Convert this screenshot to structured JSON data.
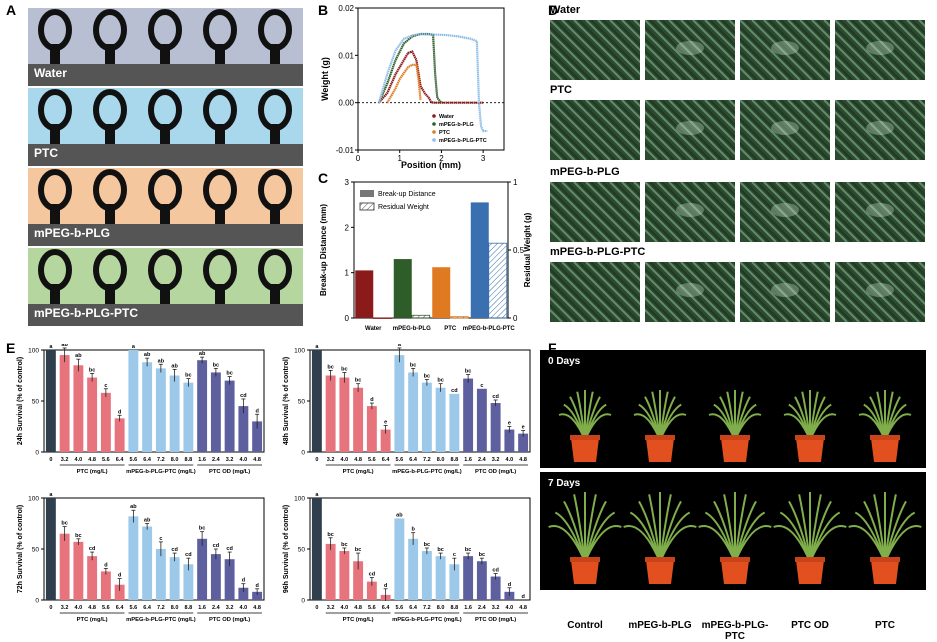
{
  "panels": {
    "a": "A",
    "b": "B",
    "c": "C",
    "d": "D",
    "e": "E",
    "f": "F"
  },
  "drop_panels": [
    {
      "label": "Water",
      "color": "#b9bfd2"
    },
    {
      "label": "PTC",
      "color": "#a9d7ec"
    },
    {
      "label": "mPEG-b-PLG",
      "color": "#f4c79e"
    },
    {
      "label": "mPEG-b-PLG-PTC",
      "color": "#b6d6a0"
    }
  ],
  "micro_rows": [
    {
      "label": "Water"
    },
    {
      "label": "PTC"
    },
    {
      "label": "mPEG-b-PLG"
    },
    {
      "label": "mPEG-b-PLG-PTC"
    }
  ],
  "photo_days": [
    "0 Days",
    "7 Days"
  ],
  "plant_labels": [
    "Control",
    "mPEG-b-PLG",
    "mPEG-b-PLG-PTC",
    "PTC OD",
    "PTC"
  ],
  "colors": {
    "water": "#2f3f4e",
    "ptc": "#e7737c",
    "plg_ptc": "#9cc8ea",
    "ptcod": "#5e5f9e",
    "b_water": "#8b1a1a",
    "b_plg": "#2f5d2a",
    "b_ptc": "#e07a20",
    "b_plgptc": "#8fbde6"
  },
  "chart_data": [
    {
      "id": "B",
      "type": "line",
      "xlabel": "Position (mm)",
      "ylabel": "Weight (g)",
      "xlim": [
        0,
        3.5
      ],
      "ylim": [
        -0.01,
        0.02
      ],
      "xticks": [
        0,
        1,
        2,
        3
      ],
      "yticks": [
        -0.01,
        0.0,
        0.01,
        0.02
      ],
      "ytick_labels": [
        "-0.01",
        "0.00",
        "0.01",
        "0.02"
      ],
      "legend": "upper-right",
      "series": [
        {
          "name": "Water",
          "color": "#8b1a1a",
          "x": [
            0.5,
            0.7,
            0.9,
            1.1,
            1.2,
            1.3,
            1.4,
            1.5,
            1.6,
            1.7,
            1.75,
            1.8,
            2.0,
            2.5,
            3.0
          ],
          "y": [
            0,
            0.002,
            0.006,
            0.009,
            0.0105,
            0.0108,
            0.009,
            0.0035,
            0.002,
            0.001,
            0.0002,
            0,
            0,
            0,
            0
          ]
        },
        {
          "name": "mPEG-b-PLG",
          "color": "#2f5d2a",
          "x": [
            0.5,
            0.7,
            0.9,
            1.1,
            1.3,
            1.5,
            1.7,
            1.8,
            1.85,
            1.9,
            2.0
          ],
          "y": [
            0,
            0.004,
            0.009,
            0.0125,
            0.014,
            0.0145,
            0.0145,
            0.0143,
            0.006,
            0.001,
            0
          ]
        },
        {
          "name": "PTC",
          "color": "#e07a20",
          "x": [
            0.7,
            0.9,
            1.0,
            1.2,
            1.3,
            1.4,
            1.45,
            1.5
          ],
          "y": [
            0,
            0.003,
            0.005,
            0.0075,
            0.008,
            0.008,
            0.005,
            0.0005
          ]
        },
        {
          "name": "mPEG-b-PLG-PTC",
          "color": "#8fbde6",
          "x": [
            0.5,
            0.7,
            0.9,
            1.1,
            1.3,
            1.5,
            1.8,
            2.1,
            2.4,
            2.7,
            2.85,
            2.9,
            2.95,
            3.0,
            3.1
          ],
          "y": [
            0,
            0.006,
            0.011,
            0.0135,
            0.0142,
            0.0145,
            0.0144,
            0.0143,
            0.014,
            0.0135,
            0.013,
            0.0,
            -0.005,
            -0.006,
            -0.006
          ]
        }
      ]
    },
    {
      "id": "C",
      "type": "bar",
      "xlabel": "",
      "ylabel": "Break-up Distance (mm)",
      "y2label": "Residual Weight (g)",
      "categories": [
        "Water",
        "mPEG-b-PLG",
        "PTC",
        "mPEG-b-PLG-PTC"
      ],
      "ylim": [
        0,
        3
      ],
      "y2lim": [
        0,
        1
      ],
      "yticks": [
        0,
        1,
        2,
        3
      ],
      "y2ticks": [
        0,
        0.5,
        1
      ],
      "legend": "top-left",
      "series": [
        {
          "name": "Break-up Distance",
          "values": [
            1.05,
            1.3,
            1.12,
            2.55
          ]
        },
        {
          "name": "Residual Weight",
          "values": [
            0.0,
            0.02,
            0.01,
            0.55
          ]
        }
      ]
    },
    {
      "id": "E1",
      "type": "bar",
      "ylabel": "24h Survival (% of control)",
      "ylim": [
        0,
        100
      ],
      "yticks": [
        0,
        50,
        100
      ],
      "categories": [
        "0",
        "3.2",
        "4.0",
        "4.8",
        "5.6",
        "6.4",
        "5.6",
        "6.4",
        "7.2",
        "8.0",
        "8.8",
        "1.6",
        "2.4",
        "3.2",
        "4.0",
        "4.8"
      ],
      "groups": [
        "PTC (mg/L)",
        "mPEG-b-PLG-PTC (mg/L)",
        "PTC OD (mg/L)"
      ],
      "values": [
        100,
        95,
        85,
        73,
        58,
        33,
        100,
        88,
        82,
        75,
        68,
        90,
        78,
        70,
        45,
        30
      ],
      "errors": [
        0,
        7,
        6,
        4,
        4,
        3,
        0,
        4,
        4,
        6,
        4,
        3,
        4,
        4,
        7,
        7
      ],
      "letters": [
        "a",
        "ab",
        "ab",
        "bc",
        "c",
        "d",
        "a",
        "ab",
        "ab",
        "ab",
        "bc",
        "ab",
        "bc",
        "bc",
        "cd",
        "d"
      ]
    },
    {
      "id": "E2",
      "type": "bar",
      "ylabel": "48h Survival (% of control)",
      "ylim": [
        0,
        100
      ],
      "yticks": [
        0,
        50,
        100
      ],
      "categories": [
        "0",
        "3.2",
        "4.0",
        "4.8",
        "5.6",
        "6.4",
        "5.6",
        "6.4",
        "7.2",
        "8.0",
        "8.8",
        "1.6",
        "2.4",
        "3.2",
        "4.0",
        "4.8"
      ],
      "groups": [
        "PTC (mg/L)",
        "mPEG-b-PLG-PTC (mg/L)",
        "PTC OD (mg/L)"
      ],
      "values": [
        100,
        75,
        73,
        63,
        45,
        22,
        95,
        78,
        68,
        63,
        57,
        72,
        62,
        48,
        22,
        18
      ],
      "errors": [
        0,
        5,
        5,
        4,
        3,
        4,
        7,
        4,
        3,
        4,
        0,
        4,
        0,
        3,
        3,
        3
      ],
      "letters": [
        "a",
        "bc",
        "bc",
        "bc",
        "d",
        "e",
        "a",
        "bc",
        "bc",
        "bc",
        "cd",
        "bc",
        "c",
        "cd",
        "e",
        "e"
      ]
    },
    {
      "id": "E3",
      "type": "bar",
      "ylabel": "72h Survival (% of control)",
      "ylim": [
        0,
        100
      ],
      "yticks": [
        0,
        50,
        100
      ],
      "categories": [
        "0",
        "3.2",
        "4.0",
        "4.8",
        "5.6",
        "6.4",
        "5.6",
        "6.4",
        "7.2",
        "8.0",
        "8.8",
        "1.6",
        "2.4",
        "3.2",
        "4.0",
        "4.8"
      ],
      "groups": [
        "PTC (mg/L)",
        "mPEG-b-PLG-PTC (mg/L)",
        "PTC OD (mg/L)"
      ],
      "values": [
        100,
        65,
        57,
        43,
        28,
        15,
        82,
        72,
        50,
        42,
        35,
        60,
        45,
        40,
        12,
        8
      ],
      "errors": [
        0,
        7,
        3,
        4,
        3,
        6,
        6,
        3,
        7,
        4,
        6,
        7,
        5,
        7,
        4,
        3
      ],
      "letters": [
        "a",
        "bc",
        "bc",
        "cd",
        "d",
        "d",
        "ab",
        "ab",
        "c",
        "cd",
        "cd",
        "bc",
        "cd",
        "cd",
        "d",
        "d"
      ]
    },
    {
      "id": "E4",
      "type": "bar",
      "ylabel": "96h Survival (% of control)",
      "ylim": [
        0,
        100
      ],
      "yticks": [
        0,
        50,
        100
      ],
      "categories": [
        "0",
        "3.2",
        "4.0",
        "4.8",
        "5.6",
        "6.4",
        "5.6",
        "6.4",
        "7.2",
        "8.0",
        "8.8",
        "1.6",
        "2.4",
        "3.2",
        "4.0",
        "4.8"
      ],
      "groups": [
        "PTC (mg/L)",
        "mPEG-b-PLG-PTC (mg/L)",
        "PTC OD (mg/L)"
      ],
      "values": [
        100,
        55,
        48,
        38,
        18,
        5,
        80,
        60,
        48,
        43,
        35,
        43,
        38,
        23,
        8,
        0
      ],
      "errors": [
        0,
        6,
        3,
        8,
        4,
        6,
        0,
        6,
        3,
        3,
        6,
        3,
        3,
        3,
        4,
        0
      ],
      "letters": [
        "a",
        "bc",
        "bc",
        "bc",
        "cd",
        "d",
        "ab",
        "b",
        "bc",
        "bc",
        "c",
        "bc",
        "bc",
        "cd",
        "d",
        "d"
      ]
    }
  ]
}
